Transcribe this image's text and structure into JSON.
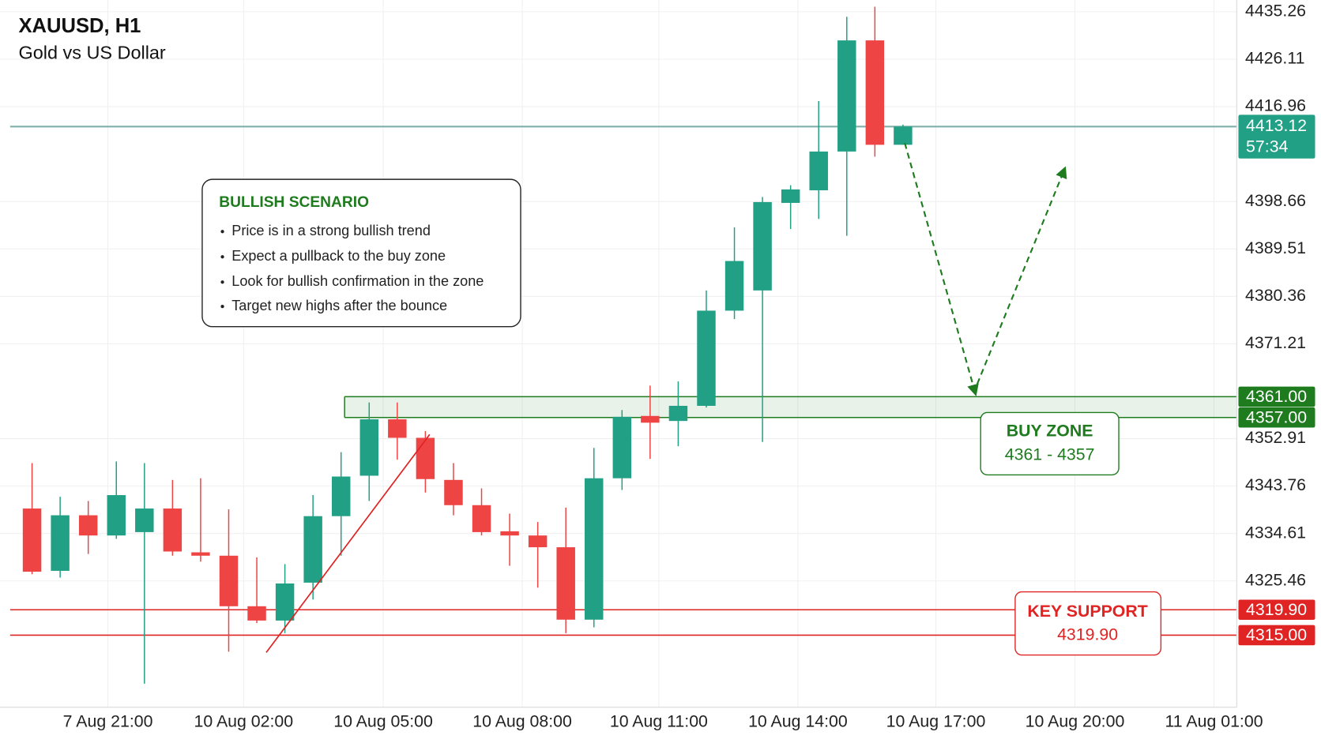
{
  "chart_data": {
    "type": "candlestick",
    "title": "XAUUSD, H1",
    "subtitle": "Gold vs US Dollar",
    "x": [
      0,
      1,
      2,
      3,
      4,
      5,
      6,
      7,
      8,
      9,
      10,
      11,
      12,
      13,
      14,
      15,
      16,
      17,
      18,
      19,
      20,
      21,
      22,
      23,
      24,
      25,
      26,
      27,
      28,
      29,
      30,
      31
    ],
    "open": [
      4339.43,
      4327.41,
      4338.13,
      4334.23,
      4334.88,
      4339.43,
      4330.98,
      4330.33,
      4320.58,
      4317.82,
      4325.13,
      4337.96,
      4345.76,
      4356.64,
      4353.07,
      4344.95,
      4340.08,
      4335.04,
      4334.23,
      4331.96,
      4317.99,
      4345.27,
      4357.29,
      4356.32,
      4359.24,
      4377.6,
      4381.5,
      4398.39,
      4400.82,
      4408.3,
      4429.74,
      4409.6
    ],
    "high": [
      4348.2,
      4341.7,
      4340.89,
      4348.52,
      4348.2,
      4344.95,
      4345.27,
      4339.26,
      4330.01,
      4328.71,
      4342.02,
      4350.31,
      4359.89,
      4359.89,
      4354.37,
      4348.2,
      4343.32,
      4338.45,
      4336.83,
      4339.59,
      4351.12,
      4358.43,
      4363.14,
      4363.95,
      4381.5,
      4393.68,
      4399.53,
      4401.8,
      4418.04,
      4434.29,
      4436.23,
      4413.5
    ],
    "low": [
      4326.76,
      4326.11,
      4330.66,
      4333.58,
      4305.64,
      4330.33,
      4329.19,
      4311.81,
      4317.34,
      4315.39,
      4321.89,
      4330.33,
      4340.89,
      4348.85,
      4342.51,
      4338.13,
      4334.23,
      4328.38,
      4324.16,
      4315.39,
      4316.52,
      4343.0,
      4349.01,
      4351.45,
      4358.92,
      4375.97,
      4352.26,
      4393.35,
      4395.3,
      4392.05,
      4407.32,
      4409.6
    ],
    "close": [
      4327.24,
      4338.13,
      4334.23,
      4342.02,
      4339.43,
      4331.14,
      4330.33,
      4320.58,
      4317.82,
      4324.97,
      4337.96,
      4345.6,
      4356.64,
      4353.07,
      4345.11,
      4340.08,
      4334.88,
      4334.23,
      4331.96,
      4317.99,
      4345.27,
      4357.13,
      4355.99,
      4359.24,
      4377.6,
      4387.18,
      4398.55,
      4400.99,
      4408.3,
      4429.74,
      4409.6,
      4413.12
    ],
    "up_color": "#22a085",
    "down_color": "#ef4444",
    "xlim": [
      -1.14,
      42.88
    ],
    "xticks": [
      {
        "value": 2.7,
        "label": "7 Aug 21:00"
      },
      {
        "value": 7.53,
        "label": "10 Aug 02:00"
      },
      {
        "value": 12.5,
        "label": "10 Aug 05:00"
      },
      {
        "value": 17.45,
        "label": "10 Aug 08:00"
      },
      {
        "value": 22.31,
        "label": "10 Aug 11:00"
      },
      {
        "value": 27.26,
        "label": "10 Aug 14:00"
      },
      {
        "value": 32.17,
        "label": "10 Aug 17:00"
      },
      {
        "value": 37.12,
        "label": "10 Aug 20:00"
      },
      {
        "value": 42.07,
        "label": "11 Aug 01:00"
      }
    ],
    "ylim": [
      4301.1,
      4437.53
    ],
    "yticks": [
      4435.26,
      4426.11,
      4416.96,
      4398.66,
      4389.51,
      4380.36,
      4371.21,
      4352.91,
      4343.76,
      4334.61,
      4325.46
    ],
    "grid": true,
    "current_price": {
      "value": 4413.12,
      "countdown": "57:34",
      "color": "#22a085",
      "line_color": "#7fb0ab"
    },
    "buy_zone": {
      "title": "BUY ZONE",
      "label": "4361 - 4357",
      "high": {
        "value": 4361,
        "label": "4361.00"
      },
      "low": {
        "value": 4357,
        "label": "4357.00"
      },
      "color": "#1e7b1e"
    },
    "key_support": {
      "title": "KEY SUPPORT",
      "color": "#e02424",
      "levels": [
        {
          "value": 4319.9,
          "label": "4319.90"
        },
        {
          "value": 4315,
          "label": "4315.00"
        }
      ]
    },
    "annotation": {
      "title": "BULLISH SCENARIO",
      "items": [
        "Price is in a strong bullish trend",
        "Expect a pullback to the buy zone",
        "Look for bullish confirmation in the zone",
        "Target new highs after the bounce"
      ]
    }
  }
}
